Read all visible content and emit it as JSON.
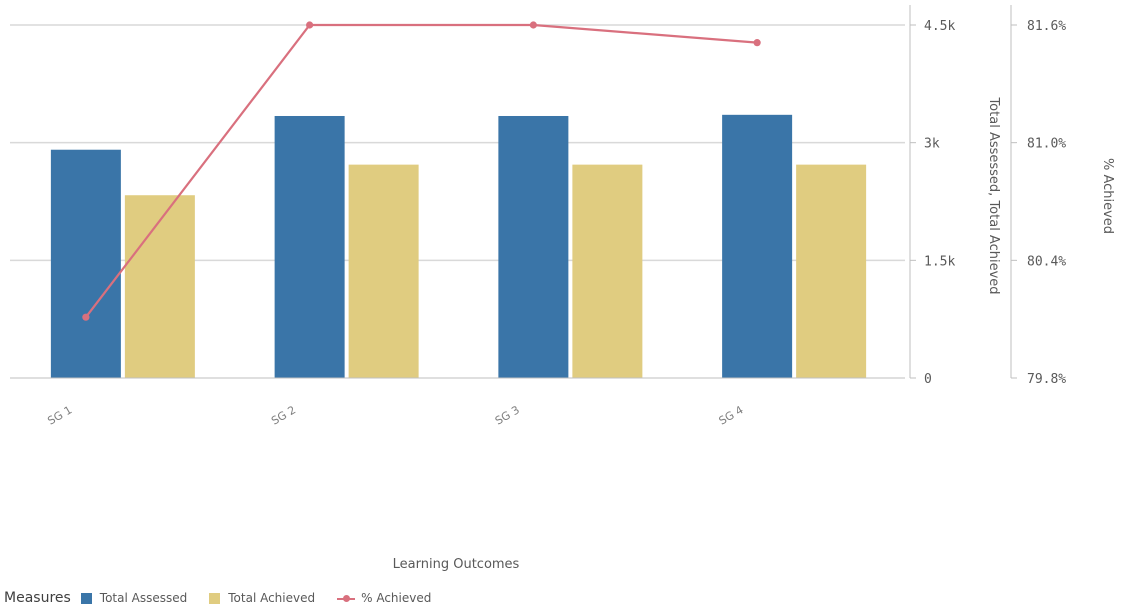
{
  "chart_data": {
    "type": "bar",
    "categories": [
      "SG 1",
      "SG 2",
      "SG 3",
      "SG 4"
    ],
    "series": [
      {
        "name": "Total Assessed",
        "type": "bar",
        "axis": "left",
        "color": "#3a75a8",
        "values": [
          2910,
          3340,
          3340,
          3355
        ]
      },
      {
        "name": "Total Achieved",
        "type": "bar",
        "axis": "left",
        "color": "#e0cc80",
        "values": [
          2330,
          2720,
          2720,
          2720
        ]
      },
      {
        "name": "% Achieved",
        "type": "line",
        "axis": "right",
        "color": "#d9707e",
        "values": [
          80.11,
          81.6,
          81.6,
          81.51
        ]
      }
    ],
    "xlabel": "Learning Outcomes",
    "ylabel_left": "Total Assessed, Total Achieved",
    "ylabel_right": "% Achieved",
    "ylim_left": [
      0,
      4500
    ],
    "ylim_right": [
      79.8,
      81.6
    ],
    "left_ticks": [
      "0",
      "1.5k",
      "3k",
      "4.5k"
    ],
    "right_ticks": [
      "79.8%",
      "80.4%",
      "81.0%",
      "81.6%"
    ],
    "grid": true,
    "legend_position": "bottom-left"
  },
  "legend": {
    "title": "Measures",
    "items": [
      {
        "label": "Total Assessed",
        "color": "#3a75a8",
        "kind": "square"
      },
      {
        "label": "Total Achieved",
        "color": "#e0cc80",
        "kind": "square"
      },
      {
        "label": "% Achieved",
        "color": "#d9707e",
        "kind": "line"
      }
    ]
  }
}
